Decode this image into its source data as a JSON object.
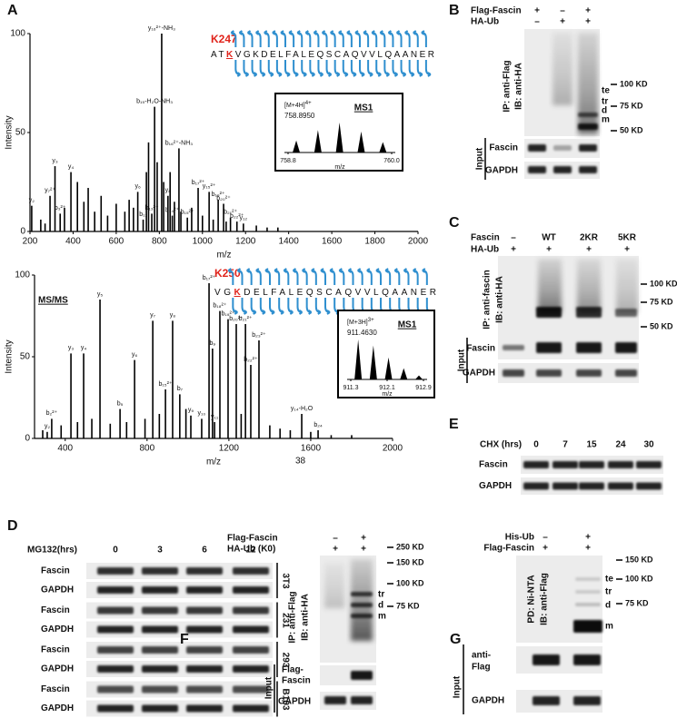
{
  "panel_a": {
    "label": "A",
    "stray_text": "38",
    "spectra": [
      {
        "site": "K247",
        "sequence": {
          "before": "AT",
          "site": "K",
          "after": "VGKDELFALEQSCAQVVLQAANER"
        },
        "y_label": "Intensity",
        "x_label": "m/z",
        "xlim": [
          200,
          2000
        ],
        "xticks": [
          200,
          400,
          600,
          800,
          1000,
          1200,
          1400,
          1600,
          1800,
          2000
        ],
        "ylim": [
          0,
          100
        ],
        "yticks": [
          0,
          50,
          100
        ],
        "peak_color": "#000000",
        "label_colors": {
          "y": "#2f6db3",
          "b": "#e0231b"
        },
        "inset": {
          "ion": "[M+4H]",
          "charge": "4+",
          "mz": "758.8950",
          "title": "MS1",
          "x_label": "m/z",
          "xlim": [
            758.8,
            760
          ],
          "xticks": [
            758.8,
            {
              "value": 760,
              "label": "760.0"
            }
          ],
          "ylim": [
            0,
            100
          ],
          "peaks": [
            {
              "mz": 758.895,
              "intensity": 40
            },
            {
              "mz": 759.146,
              "intensity": 75
            },
            {
              "mz": 759.396,
              "intensity": 100
            },
            {
              "mz": 759.647,
              "intensity": 70
            },
            {
              "mz": 759.898,
              "intensity": 35
            }
          ]
        },
        "peaks": [
          {
            "mz": 208,
            "intensity": 13,
            "label": "y₂"
          },
          {
            "mz": 250,
            "intensity": 6
          },
          {
            "mz": 270,
            "intensity": 4
          },
          {
            "mz": 293,
            "intensity": 18,
            "label": "y₇²⁺"
          },
          {
            "mz": 316,
            "intensity": 33,
            "label": "y₃"
          },
          {
            "mz": 340,
            "intensity": 9,
            "label": "b₃²⁺"
          },
          {
            "mz": 360,
            "intensity": 12
          },
          {
            "mz": 390,
            "intensity": 30,
            "label": "y₄"
          },
          {
            "mz": 420,
            "intensity": 25
          },
          {
            "mz": 450,
            "intensity": 15
          },
          {
            "mz": 470,
            "intensity": 22
          },
          {
            "mz": 500,
            "intensity": 10
          },
          {
            "mz": 530,
            "intensity": 18
          },
          {
            "mz": 560,
            "intensity": 8
          },
          {
            "mz": 600,
            "intensity": 14
          },
          {
            "mz": 640,
            "intensity": 10
          },
          {
            "mz": 660,
            "intensity": 16
          },
          {
            "mz": 680,
            "intensity": 12
          },
          {
            "mz": 700,
            "intensity": 20,
            "label": "y₆"
          },
          {
            "mz": 725,
            "intensity": 6,
            "label": "b₁₁"
          },
          {
            "mz": 740,
            "intensity": 30
          },
          {
            "mz": 750,
            "intensity": 45
          },
          {
            "mz": 765,
            "intensity": 9,
            "label": "b₁₃²⁺"
          },
          {
            "mz": 778,
            "intensity": 63,
            "label": "b₁₅-H₂O-NH₃"
          },
          {
            "mz": 790,
            "intensity": 35
          },
          {
            "mz": 811,
            "intensity": 100,
            "label": "y₁₆²⁺-NH₃"
          },
          {
            "mz": 820,
            "intensity": 25
          },
          {
            "mz": 840,
            "intensity": 18,
            "label": "y₈"
          },
          {
            "mz": 850,
            "intensity": 30
          },
          {
            "mz": 860,
            "intensity": 8,
            "label": "b₁₄²⁺"
          },
          {
            "mz": 870,
            "intensity": 15
          },
          {
            "mz": 891,
            "intensity": 42,
            "label": "b₁₆²⁺-NH₃"
          },
          {
            "mz": 900,
            "intensity": 10
          },
          {
            "mz": 930,
            "intensity": 7,
            "label": "b₁₅²⁺"
          },
          {
            "mz": 950,
            "intensity": 12
          },
          {
            "mz": 980,
            "intensity": 22,
            "label": "b₁₇²⁺"
          },
          {
            "mz": 1000,
            "intensity": 8
          },
          {
            "mz": 1031,
            "intensity": 20,
            "label": "y₁₅²⁺"
          },
          {
            "mz": 1050,
            "intensity": 6
          },
          {
            "mz": 1073,
            "intensity": 16,
            "label": "b₁₉²⁺"
          },
          {
            "mz": 1098,
            "intensity": 14,
            "label": "b₂₀²⁺"
          },
          {
            "mz": 1110,
            "intensity": 5
          },
          {
            "mz": 1130,
            "intensity": 7,
            "label": "b₂₁²⁺"
          },
          {
            "mz": 1160,
            "intensity": 5,
            "label": "b₂₂²⁺"
          },
          {
            "mz": 1190,
            "intensity": 4,
            "label": "y₁₂"
          },
          {
            "mz": 1250,
            "intensity": 3
          },
          {
            "mz": 1300,
            "intensity": 2
          },
          {
            "mz": 1350,
            "intensity": 2
          }
        ]
      },
      {
        "site": "K250",
        "sequence": {
          "before": "VG",
          "site": "K",
          "after": "DELFALEQSCAQVVLQAANER"
        },
        "ms_label": "MS/MS",
        "y_label": "Intensity",
        "x_label": "m/z",
        "xlim": [
          250,
          2000
        ],
        "xticks": [
          400,
          800,
          1200,
          1600,
          2000
        ],
        "ylim": [
          0,
          100
        ],
        "yticks": [
          0,
          50,
          100
        ],
        "peak_color": "#000000",
        "label_colors": {
          "y": "#2f6db3",
          "b": "#e0231b"
        },
        "inset": {
          "ion": "[M+3H]",
          "charge": "3+",
          "mz": "911.4630",
          "title": "MS1",
          "x_label": "m/z",
          "xlim": [
            911.3,
            912.9
          ],
          "xticks": [
            911.3,
            912.1,
            912.9
          ],
          "ylim": [
            0,
            100
          ],
          "peaks": [
            {
              "mz": 911.463,
              "intensity": 100
            },
            {
              "mz": 911.797,
              "intensity": 85
            },
            {
              "mz": 912.131,
              "intensity": 55
            },
            {
              "mz": 912.465,
              "intensity": 28
            },
            {
              "mz": 912.8,
              "intensity": 10
            }
          ]
        },
        "peaks": [
          {
            "mz": 290,
            "intensity": 5
          },
          {
            "mz": 312,
            "intensity": 4,
            "label": "y₂"
          },
          {
            "mz": 334,
            "intensity": 12,
            "label": "b₂²⁺"
          },
          {
            "mz": 380,
            "intensity": 8
          },
          {
            "mz": 428,
            "intensity": 52,
            "label": "y₃"
          },
          {
            "mz": 460,
            "intensity": 10
          },
          {
            "mz": 490,
            "intensity": 52,
            "label": "y₄"
          },
          {
            "mz": 530,
            "intensity": 12
          },
          {
            "mz": 570,
            "intensity": 85,
            "label": "y₅"
          },
          {
            "mz": 620,
            "intensity": 9
          },
          {
            "mz": 668,
            "intensity": 18,
            "label": "b₅"
          },
          {
            "mz": 700,
            "intensity": 10
          },
          {
            "mz": 739,
            "intensity": 48,
            "label": "y₆"
          },
          {
            "mz": 790,
            "intensity": 12
          },
          {
            "mz": 828,
            "intensity": 72,
            "label": "y₇"
          },
          {
            "mz": 860,
            "intensity": 15
          },
          {
            "mz": 890,
            "intensity": 30,
            "label": "b₁₅²⁺"
          },
          {
            "mz": 925,
            "intensity": 72,
            "label": "y₈"
          },
          {
            "mz": 960,
            "intensity": 27,
            "label": "b₇"
          },
          {
            "mz": 990,
            "intensity": 18
          },
          {
            "mz": 1014,
            "intensity": 14,
            "label": "y₉"
          },
          {
            "mz": 1067,
            "intensity": 12,
            "label": "y₁₀"
          },
          {
            "mz": 1103,
            "intensity": 95,
            "label": "b₁₇²⁺"
          },
          {
            "mz": 1120,
            "intensity": 55,
            "label": "b₉"
          },
          {
            "mz": 1130,
            "intensity": 10,
            "label": "y₁₁"
          },
          {
            "mz": 1156,
            "intensity": 78,
            "label": "b₁₈²⁺"
          },
          {
            "mz": 1196,
            "intensity": 73,
            "label": "b₁₉²⁺"
          },
          {
            "mz": 1236,
            "intensity": 70,
            "label": "b₂₀²⁺"
          },
          {
            "mz": 1260,
            "intensity": 15
          },
          {
            "mz": 1281,
            "intensity": 70,
            "label": "b₂₁²⁺"
          },
          {
            "mz": 1307,
            "intensity": 45,
            "label": "b₂₂²⁺"
          },
          {
            "mz": 1347,
            "intensity": 60,
            "label": "b₂₃²⁺"
          },
          {
            "mz": 1400,
            "intensity": 8
          },
          {
            "mz": 1450,
            "intensity": 6
          },
          {
            "mz": 1500,
            "intensity": 5
          },
          {
            "mz": 1556,
            "intensity": 15,
            "label": "y₁₄-H₂O"
          },
          {
            "mz": 1600,
            "intensity": 4
          },
          {
            "mz": 1636,
            "intensity": 5,
            "label": "b₂₄"
          },
          {
            "mz": 1700,
            "intensity": 2
          },
          {
            "mz": 1800,
            "intensity": 2
          }
        ]
      }
    ]
  },
  "panel_b": {
    "label": "B",
    "treatments": [
      {
        "name": "Flag-Fascin",
        "lanes": [
          "+",
          "–",
          "+"
        ]
      },
      {
        "name": "HA-Ub",
        "lanes": [
          "–",
          "+",
          "+"
        ]
      }
    ],
    "ip": "IP: anti-Flag",
    "ib": "IB: anti-HA",
    "markers": [
      "100 KD",
      "75 KD",
      "50 KD"
    ],
    "species": [
      "te",
      "tr",
      "d",
      "m"
    ],
    "input": "Input",
    "input_blots": [
      "Fascin",
      "GAPDH"
    ]
  },
  "panel_c": {
    "label": "C",
    "treatments": [
      {
        "name": "Fascin",
        "lanes": [
          "–",
          "WT",
          "2KR",
          "5KR"
        ]
      },
      {
        "name": "HA-Ub",
        "lanes": [
          "+",
          "+",
          "+",
          "+"
        ]
      }
    ],
    "ip": "IP: anti-fascin",
    "ib": "IB: anti-HA",
    "markers": [
      "100 KD",
      "75 KD",
      "50 KD"
    ],
    "input": "Input",
    "input_blots": [
      "Fascin",
      "GAPDH"
    ]
  },
  "panel_d": {
    "label": "D",
    "treatment": "MG132(hrs)",
    "times": [
      0,
      3,
      6,
      12
    ],
    "groups": [
      {
        "cell_line": "3T3",
        "blots": [
          "Fascin",
          "GAPDH"
        ]
      },
      {
        "cell_line": "231",
        "blots": [
          "Fascin",
          "GAPDH"
        ]
      },
      {
        "cell_line": "293",
        "blots": [
          "Fascin",
          "GAPDH"
        ]
      },
      {
        "cell_line": "B103",
        "blots": [
          "Fascin",
          "GAPDH"
        ]
      }
    ]
  },
  "panel_e": {
    "label": "E",
    "treatment": "CHX (hrs)",
    "times": [
      0,
      7,
      15,
      24,
      30
    ],
    "blots": [
      "Fascin",
      "GAPDH"
    ]
  },
  "panel_f": {
    "label": "F",
    "treatments": [
      {
        "name": "Flag-Fascin",
        "lanes": [
          "–",
          "+"
        ]
      },
      {
        "name": "HA-Ub (K0)",
        "lanes": [
          "+",
          "+"
        ]
      }
    ],
    "ip": "IP: anti-Flag",
    "ib": "IB: anti-HA",
    "markers": [
      "250 KD",
      "150 KD",
      "100 KD",
      "75 KD"
    ],
    "species": [
      "tr",
      "d",
      "m"
    ],
    "input": "Input",
    "input_blots": [
      {
        "lines": [
          "Flag-",
          "Fascin"
        ]
      },
      {
        "lines": [
          "GAPDH"
        ]
      }
    ]
  },
  "panel_g": {
    "label": "G",
    "treatments": [
      {
        "name": "His-Ub",
        "lanes": [
          "–",
          "+"
        ]
      },
      {
        "name": "Flag-Fascin",
        "lanes": [
          "+",
          "+"
        ]
      }
    ],
    "ip": "PD: Ni-NTA",
    "ib": "IB: anti-Flag",
    "markers": [
      "150 KD",
      "100 KD",
      "75 KD"
    ],
    "species": [
      "te",
      "tr",
      "d",
      "m"
    ],
    "input": "Input",
    "input_blots": [
      {
        "lines": [
          "anti-",
          "Flag"
        ]
      },
      {
        "lines": [
          "GAPDH"
        ]
      }
    ]
  }
}
